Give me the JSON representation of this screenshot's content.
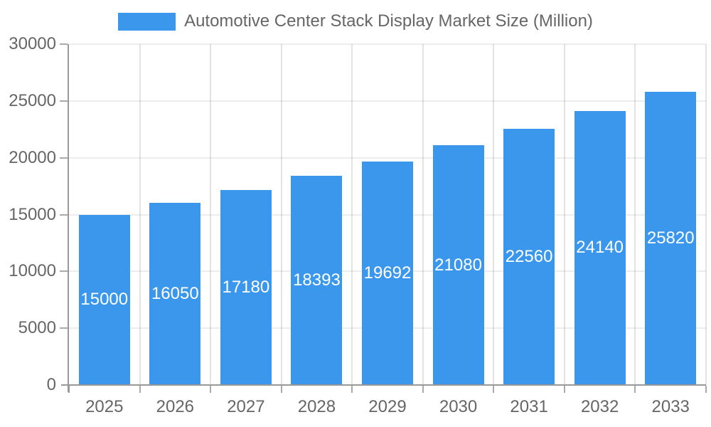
{
  "chart_data": {
    "type": "bar",
    "title": "Automotive Center Stack Display Market Size (Million)",
    "legend": {
      "position": "top",
      "label": "Automotive Center Stack Display Market Size (Million)"
    },
    "categories": [
      "2025",
      "2026",
      "2027",
      "2028",
      "2029",
      "2030",
      "2031",
      "2032",
      "2033"
    ],
    "series": [
      {
        "name": "Automotive Center Stack Display Market Size (Million)",
        "values": [
          15000,
          16050,
          17180,
          18393,
          19692,
          21080,
          22560,
          24140,
          25820
        ]
      }
    ],
    "value_labels": "inside-center",
    "xlabel": "",
    "ylabel": "",
    "ylim": [
      0,
      30000
    ],
    "yticks": [
      0,
      5000,
      10000,
      15000,
      20000,
      25000,
      30000
    ],
    "grid": true,
    "colors": {
      "bar": "#3B97EC",
      "axis_text": "#666666",
      "value_label_text": "#FFFFFF",
      "axis_line": "#999999",
      "tick_mark": "#ABABAB",
      "gridline_h": "rgba(0,0,0,0.07)",
      "gridline_v": "rgba(0,0,0,0.11)",
      "background": "#FFFFFF"
    }
  }
}
